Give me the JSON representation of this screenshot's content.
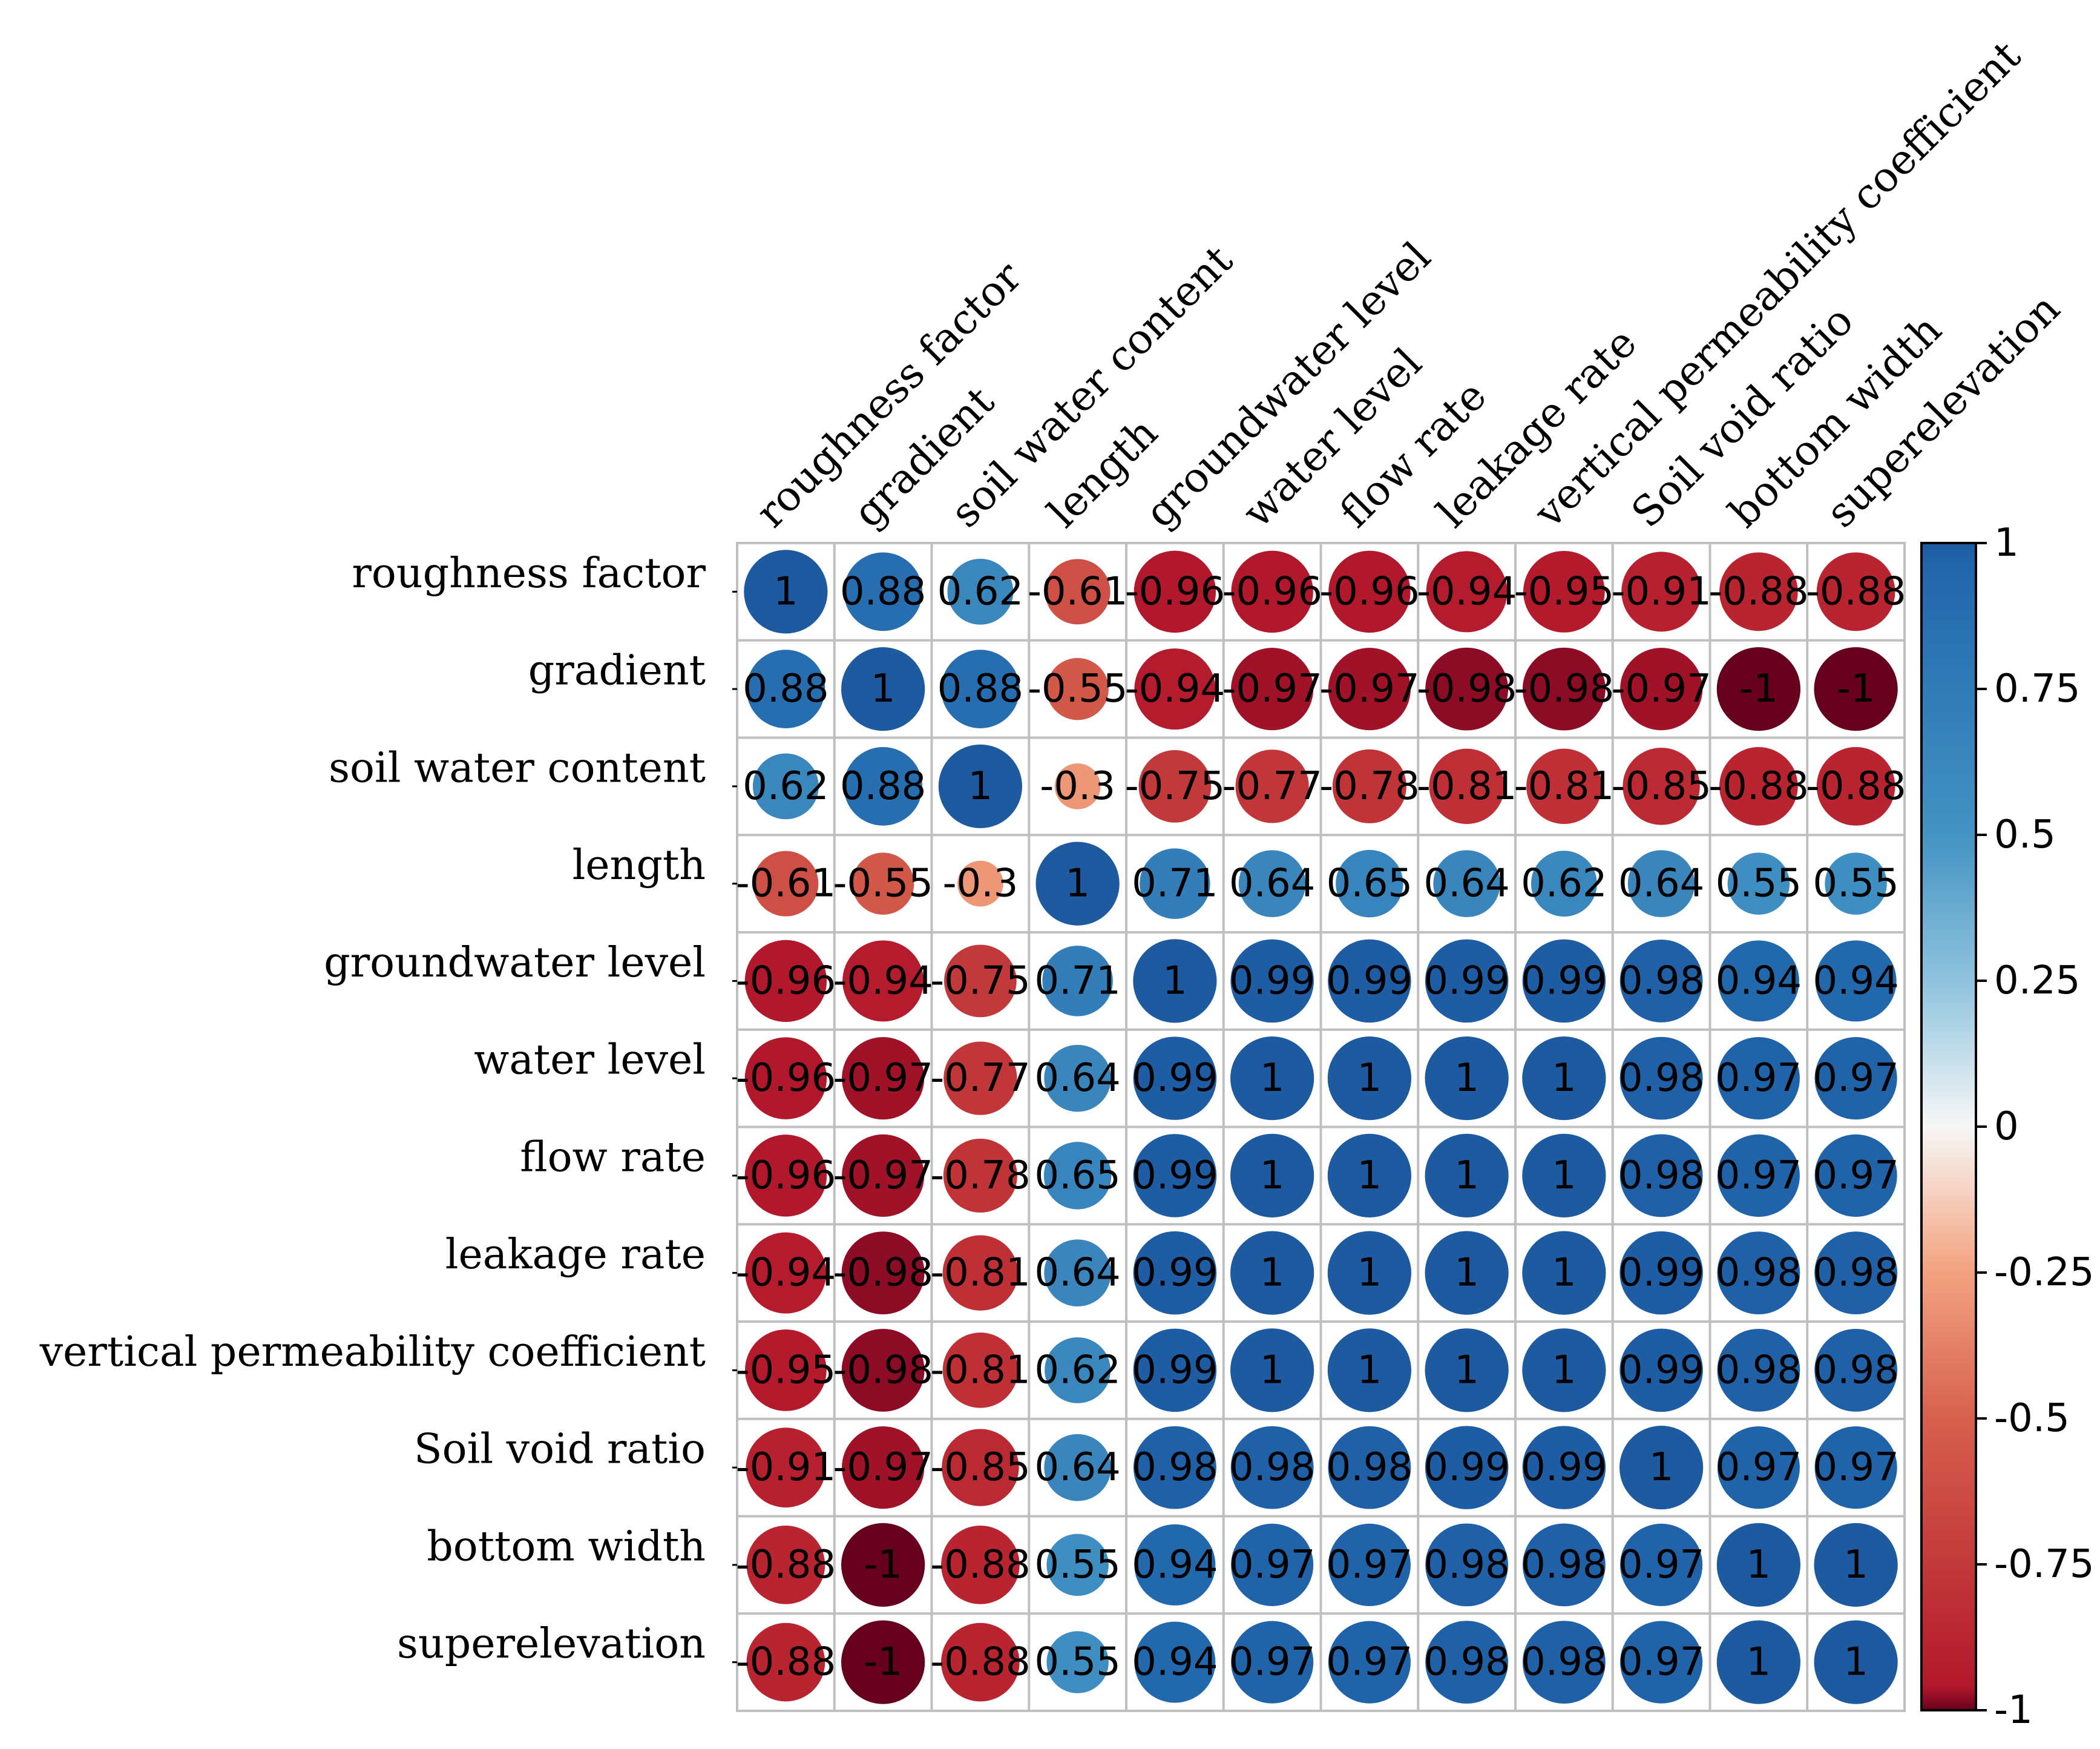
{
  "chart_data": {
    "type": "heatmap",
    "style": "circle-correlation-matrix",
    "title": "",
    "variables": [
      "roughness factor",
      "gradient",
      "soil water content",
      "length",
      "groundwater level",
      "water level",
      "flow rate",
      "leakage rate",
      "vertical permeability coefficient",
      "Soil void ratio",
      "bottom width",
      "superelevation"
    ],
    "matrix": [
      [
        1,
        0.88,
        0.62,
        -0.61,
        -0.96,
        -0.96,
        -0.96,
        -0.94,
        -0.95,
        -0.91,
        -0.88,
        -0.88
      ],
      [
        0.88,
        1,
        0.88,
        -0.55,
        -0.94,
        -0.97,
        -0.97,
        -0.98,
        -0.98,
        -0.97,
        -1,
        -1
      ],
      [
        0.62,
        0.88,
        1,
        -0.3,
        -0.75,
        -0.77,
        -0.78,
        -0.81,
        -0.81,
        -0.85,
        -0.88,
        -0.88
      ],
      [
        -0.61,
        -0.55,
        -0.3,
        1,
        0.71,
        0.64,
        0.65,
        0.64,
        0.62,
        0.64,
        0.55,
        0.55
      ],
      [
        -0.96,
        -0.94,
        -0.75,
        0.71,
        1,
        0.99,
        0.99,
        0.99,
        0.99,
        0.98,
        0.94,
        0.94
      ],
      [
        -0.96,
        -0.97,
        -0.77,
        0.64,
        0.99,
        1,
        1,
        1,
        1,
        0.98,
        0.97,
        0.97
      ],
      [
        -0.96,
        -0.97,
        -0.78,
        0.65,
        0.99,
        1,
        1,
        1,
        1,
        0.98,
        0.97,
        0.97
      ],
      [
        -0.94,
        -0.98,
        -0.81,
        0.64,
        0.99,
        1,
        1,
        1,
        1,
        0.99,
        0.98,
        0.98
      ],
      [
        -0.95,
        -0.98,
        -0.81,
        0.62,
        0.99,
        1,
        1,
        1,
        1,
        0.99,
        0.98,
        0.98
      ],
      [
        -0.91,
        -0.97,
        -0.85,
        0.64,
        0.98,
        0.98,
        0.98,
        0.99,
        0.99,
        1,
        0.97,
        0.97
      ],
      [
        -0.88,
        -1,
        -0.88,
        0.55,
        0.94,
        0.97,
        0.97,
        0.98,
        0.98,
        0.97,
        1,
        1
      ],
      [
        -0.88,
        -1,
        -0.88,
        0.55,
        0.94,
        0.97,
        0.97,
        0.98,
        0.98,
        0.97,
        1,
        1
      ]
    ],
    "colorbar": {
      "range": [
        -1,
        1
      ],
      "colormap": "RdBu",
      "ticks": [
        1,
        0.75,
        0.5,
        0.25,
        0,
        -0.25,
        -0.5,
        -0.75,
        -1
      ],
      "tick_labels": [
        "1",
        "0.75",
        "0.5",
        "0.25",
        "0",
        "-0.25",
        "-0.5",
        "-0.75",
        "-1"
      ]
    },
    "colors": {
      "negative": "#b2182b",
      "neutral": "#f7f7f7",
      "positive": "#2166ac",
      "grid": "#bfbfbf"
    }
  }
}
